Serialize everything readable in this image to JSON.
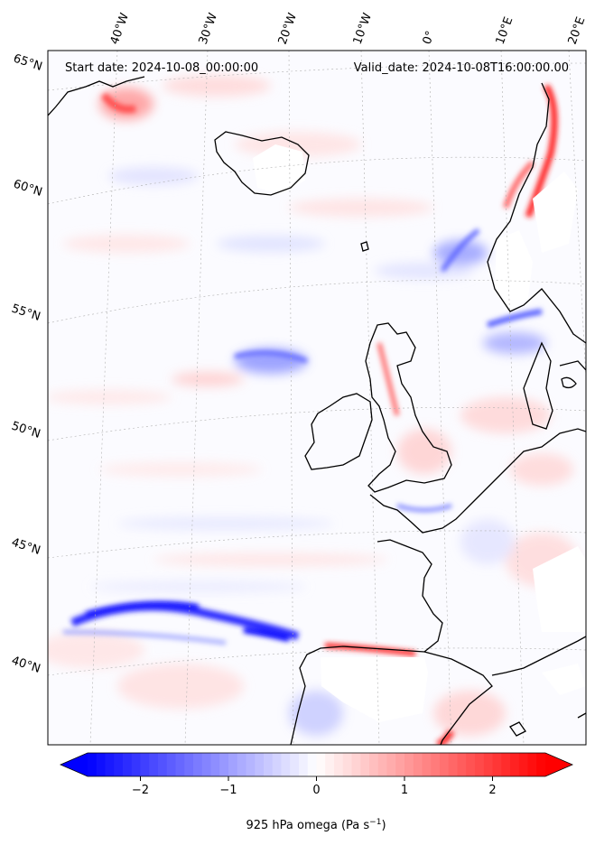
{
  "header": {
    "start_date": "Start date: 2024-10-08_00:00:00",
    "valid_date": "Valid_date: 2024-10-08T16:00:00.00"
  },
  "lon_labels": [
    "40°W",
    "30°W",
    "20°W",
    "10°W",
    "0°",
    "10°E",
    "20°E"
  ],
  "lat_labels": [
    "65°N",
    "60°N",
    "55°N",
    "50°N",
    "45°N",
    "40°N"
  ],
  "colorbar": {
    "ticks": [
      "−2",
      "−1",
      "0",
      "1",
      "2"
    ],
    "range": [
      -2.6,
      2.6
    ],
    "tick_values": [
      -2,
      -1,
      0,
      1,
      2
    ],
    "label": "925 hPa omega (Pa s",
    "label_sup": "−1",
    "label_end": ")",
    "colors": {
      "min": "#0000ff",
      "mid": "#ffffff",
      "max": "#ff0000"
    }
  },
  "colors": {
    "coastline": "#000000",
    "gridline": "#b0b0b0",
    "no_data": "#ffffff"
  }
}
